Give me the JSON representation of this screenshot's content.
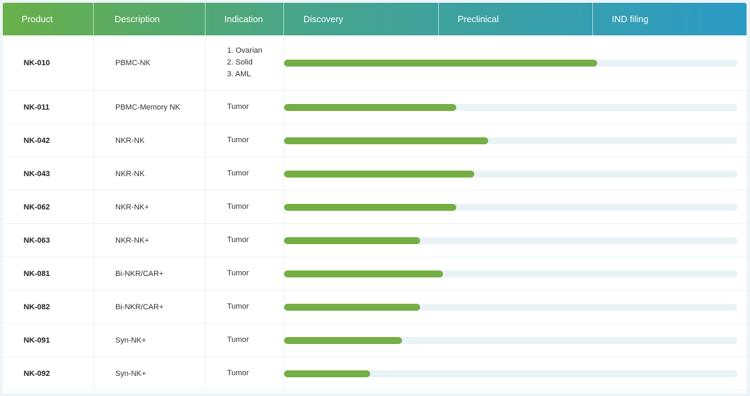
{
  "header": {
    "columns": [
      "Product",
      "Description",
      "Indication",
      "Discovery",
      "Preclinical",
      "IND filing"
    ]
  },
  "rows": [
    {
      "product": "NK-010",
      "description": "PBMC-NK",
      "indication": [
        "1. Ovarian",
        "2. Solid",
        "3. AML"
      ],
      "progress": 69
    },
    {
      "product": "NK-011",
      "description": "PBMC-Memory NK",
      "indication": [
        "Tumor"
      ],
      "progress": 38
    },
    {
      "product": "NK-042",
      "description": "NKR-NK",
      "indication": [
        "Tumor"
      ],
      "progress": 45
    },
    {
      "product": "NK-043",
      "description": "NKR-NK",
      "indication": [
        "Tumor"
      ],
      "progress": 42
    },
    {
      "product": "NK-062",
      "description": "NKR-NK+",
      "indication": [
        "Tumor"
      ],
      "progress": 38
    },
    {
      "product": "NK-063",
      "description": "NKR-NK+",
      "indication": [
        "Tumor"
      ],
      "progress": 30
    },
    {
      "product": "NK-081",
      "description": "Bi-NKR/CAR+",
      "indication": [
        "Tumor"
      ],
      "progress": 35
    },
    {
      "product": "NK-082",
      "description": "Bi-NKR/CAR+",
      "indication": [
        "Tumor"
      ],
      "progress": 30
    },
    {
      "product": "NK-091",
      "description": "Syn-NK+",
      "indication": [
        "Tumor"
      ],
      "progress": 26
    },
    {
      "product": "NK-092",
      "description": "Syn-NK+",
      "indication": [
        "Tumor"
      ],
      "progress": 19
    }
  ]
}
